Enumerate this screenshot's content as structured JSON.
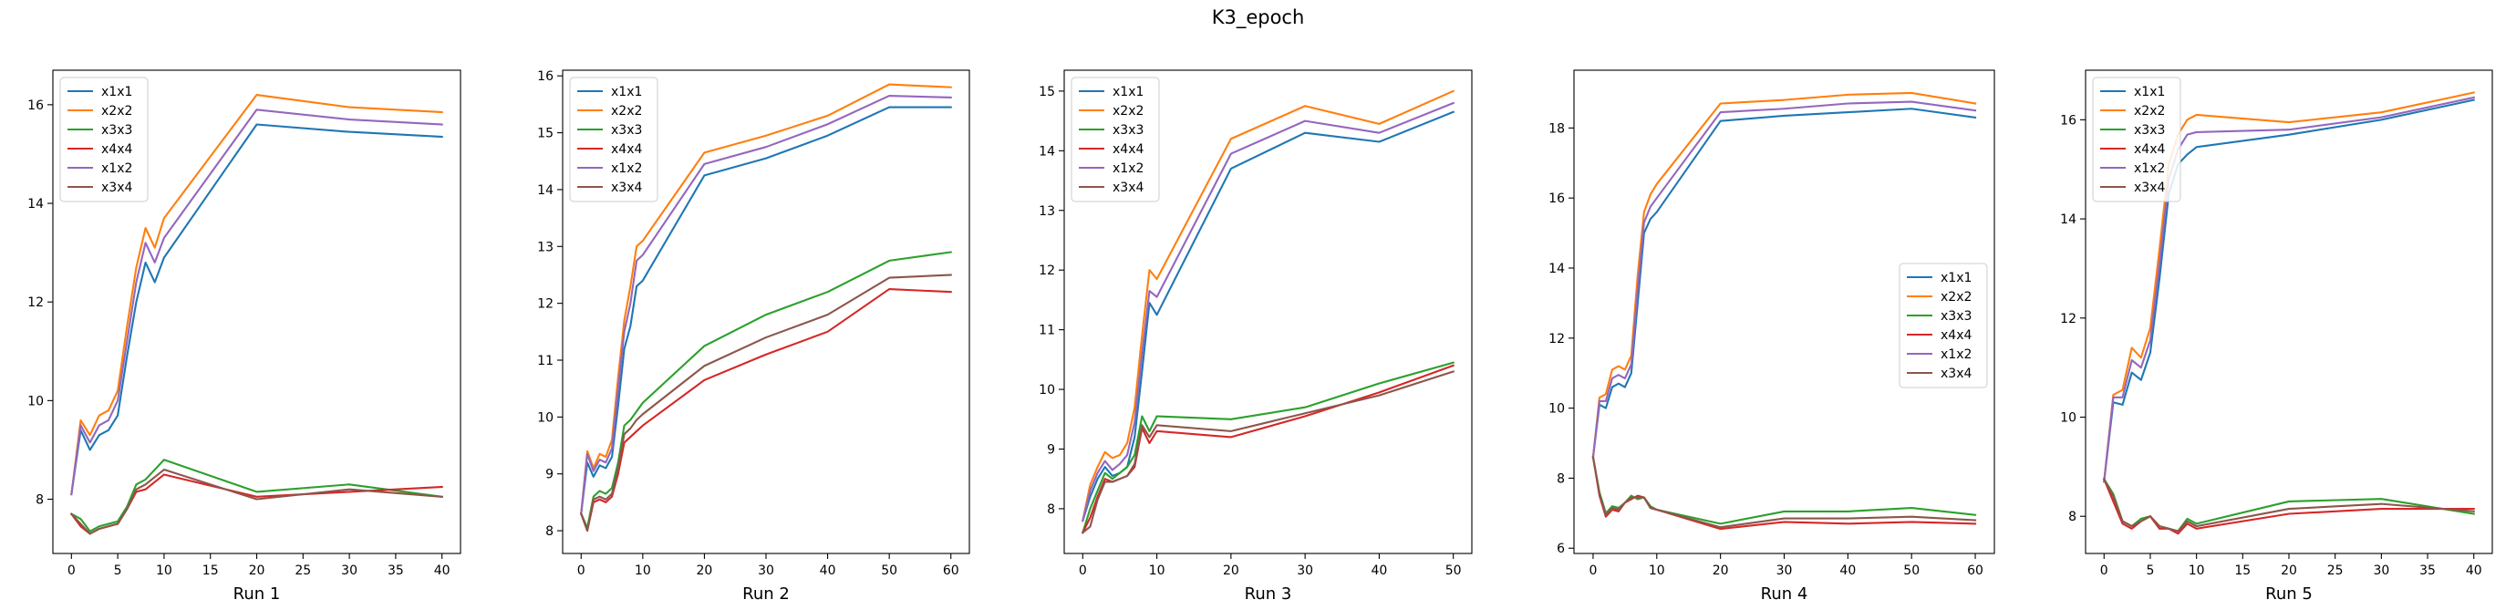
{
  "figure": {
    "title": "K3_epoch"
  },
  "colors": {
    "x1x1": "#1f77b4",
    "x2x2": "#ff7f0e",
    "x3x3": "#2ca02c",
    "x4x4": "#d62728",
    "x1x2": "#9467bd",
    "x3x4": "#8c564b"
  },
  "chart_data": [
    {
      "type": "line",
      "xlabel": "Run 1",
      "xlim": [
        -2,
        42
      ],
      "ylim": [
        6.9,
        16.7
      ],
      "xticks": [
        0,
        5,
        10,
        15,
        20,
        25,
        30,
        35,
        40
      ],
      "yticks": [
        8,
        10,
        12,
        14,
        16
      ],
      "legend_position": "top-left",
      "x": [
        0,
        1,
        2,
        3,
        4,
        5,
        6,
        7,
        8,
        9,
        10,
        20,
        30,
        40
      ],
      "series": [
        {
          "name": "x1x1",
          "values": [
            8.1,
            9.4,
            9.0,
            9.3,
            9.4,
            9.7,
            10.9,
            12.0,
            12.8,
            12.4,
            12.9,
            15.6,
            15.45,
            15.35
          ]
        },
        {
          "name": "x2x2",
          "values": [
            8.1,
            9.6,
            9.3,
            9.7,
            9.8,
            10.2,
            11.5,
            12.7,
            13.5,
            13.1,
            13.7,
            16.2,
            15.95,
            15.85
          ]
        },
        {
          "name": "x3x3",
          "values": [
            7.7,
            7.6,
            7.35,
            7.45,
            7.5,
            7.55,
            7.85,
            8.3,
            8.4,
            8.6,
            8.8,
            8.15,
            8.3,
            8.05
          ]
        },
        {
          "name": "x4x4",
          "values": [
            7.7,
            7.45,
            7.3,
            7.4,
            7.45,
            7.5,
            7.8,
            8.15,
            8.2,
            8.35,
            8.5,
            8.05,
            8.15,
            8.25
          ]
        },
        {
          "name": "x1x2",
          "values": [
            8.1,
            9.5,
            9.15,
            9.5,
            9.6,
            10.0,
            11.2,
            12.4,
            13.2,
            12.8,
            13.3,
            15.9,
            15.7,
            15.6
          ]
        },
        {
          "name": "x3x4",
          "values": [
            7.7,
            7.5,
            7.3,
            7.4,
            7.45,
            7.5,
            7.8,
            8.2,
            8.3,
            8.45,
            8.6,
            8.0,
            8.2,
            8.05
          ]
        }
      ]
    },
    {
      "type": "line",
      "xlabel": "Run 2",
      "xlim": [
        -3,
        63
      ],
      "ylim": [
        7.6,
        16.1
      ],
      "xticks": [
        0,
        10,
        20,
        30,
        40,
        50,
        60
      ],
      "yticks": [
        8,
        9,
        10,
        11,
        12,
        13,
        14,
        15,
        16
      ],
      "legend_position": "top-left",
      "x": [
        0,
        1,
        2,
        3,
        4,
        5,
        6,
        7,
        8,
        9,
        10,
        20,
        30,
        40,
        50,
        60
      ],
      "series": [
        {
          "name": "x1x1",
          "values": [
            8.3,
            9.2,
            8.95,
            9.15,
            9.1,
            9.3,
            10.2,
            11.2,
            11.6,
            12.3,
            12.4,
            14.25,
            14.55,
            14.95,
            15.45,
            15.45
          ]
        },
        {
          "name": "x2x2",
          "values": [
            8.3,
            9.4,
            9.1,
            9.35,
            9.3,
            9.6,
            10.7,
            11.7,
            12.3,
            13.0,
            13.1,
            14.65,
            14.95,
            15.3,
            15.85,
            15.8
          ]
        },
        {
          "name": "x3x3",
          "values": [
            8.3,
            8.05,
            8.6,
            8.7,
            8.65,
            8.75,
            9.2,
            9.85,
            9.95,
            10.1,
            10.25,
            11.25,
            11.8,
            12.2,
            12.75,
            12.9
          ]
        },
        {
          "name": "x4x4",
          "values": [
            8.3,
            8.0,
            8.5,
            8.55,
            8.5,
            8.6,
            9.0,
            9.55,
            9.65,
            9.75,
            9.85,
            10.65,
            11.1,
            11.5,
            12.25,
            12.2
          ]
        },
        {
          "name": "x1x2",
          "values": [
            8.3,
            9.35,
            9.05,
            9.25,
            9.2,
            9.45,
            10.5,
            11.5,
            12.0,
            12.75,
            12.85,
            14.45,
            14.75,
            15.15,
            15.65,
            15.62
          ]
        },
        {
          "name": "x3x4",
          "values": [
            8.3,
            8.0,
            8.55,
            8.6,
            8.55,
            8.65,
            9.1,
            9.7,
            9.8,
            9.95,
            10.05,
            10.9,
            11.4,
            11.8,
            12.45,
            12.5
          ]
        }
      ]
    },
    {
      "type": "line",
      "xlabel": "Run 3",
      "xlim": [
        -2.5,
        52.5
      ],
      "ylim": [
        7.25,
        15.35
      ],
      "xticks": [
        0,
        10,
        20,
        30,
        40,
        50
      ],
      "yticks": [
        8,
        9,
        10,
        11,
        12,
        13,
        14,
        15
      ],
      "legend_position": "top-left",
      "x": [
        0,
        1,
        2,
        3,
        4,
        5,
        6,
        7,
        8,
        9,
        10,
        20,
        30,
        40,
        50
      ],
      "series": [
        {
          "name": "x1x1",
          "values": [
            7.8,
            8.2,
            8.5,
            8.7,
            8.55,
            8.6,
            8.7,
            9.2,
            10.3,
            11.45,
            11.25,
            13.7,
            14.3,
            14.15,
            14.65
          ]
        },
        {
          "name": "x2x2",
          "values": [
            7.8,
            8.4,
            8.7,
            8.95,
            8.85,
            8.9,
            9.1,
            9.7,
            10.9,
            12.0,
            11.85,
            14.2,
            14.75,
            14.45,
            15.0
          ]
        },
        {
          "name": "x3x3",
          "values": [
            7.6,
            8.0,
            8.3,
            8.6,
            8.5,
            8.6,
            8.7,
            8.9,
            9.55,
            9.3,
            9.55,
            9.5,
            9.7,
            10.1,
            10.45
          ]
        },
        {
          "name": "x4x4",
          "values": [
            7.6,
            7.85,
            8.2,
            8.5,
            8.45,
            8.5,
            8.55,
            8.7,
            9.35,
            9.1,
            9.3,
            9.2,
            9.55,
            9.95,
            10.4
          ]
        },
        {
          "name": "x1x2",
          "values": [
            7.8,
            8.3,
            8.6,
            8.8,
            8.65,
            8.75,
            8.9,
            9.45,
            10.6,
            11.65,
            11.55,
            13.95,
            14.5,
            14.3,
            14.8
          ]
        },
        {
          "name": "x3x4",
          "values": [
            7.6,
            7.7,
            8.15,
            8.45,
            8.45,
            8.5,
            8.55,
            8.75,
            9.4,
            9.2,
            9.4,
            9.3,
            9.6,
            9.9,
            10.3
          ]
        }
      ]
    },
    {
      "type": "line",
      "xlabel": "Run 4",
      "xlim": [
        -3,
        63
      ],
      "ylim": [
        5.85,
        19.65
      ],
      "xticks": [
        0,
        10,
        20,
        30,
        40,
        50,
        60
      ],
      "yticks": [
        6,
        8,
        10,
        12,
        14,
        16,
        18
      ],
      "legend_position": "center-right",
      "x": [
        0,
        1,
        2,
        3,
        4,
        5,
        6,
        7,
        8,
        9,
        10,
        20,
        30,
        40,
        50,
        60
      ],
      "series": [
        {
          "name": "x1x1",
          "values": [
            8.6,
            10.1,
            10.0,
            10.6,
            10.7,
            10.6,
            11.0,
            13.0,
            15.0,
            15.4,
            15.6,
            18.2,
            18.35,
            18.45,
            18.55,
            18.3
          ]
        },
        {
          "name": "x2x2",
          "values": [
            8.6,
            10.3,
            10.4,
            11.1,
            11.2,
            11.1,
            11.5,
            13.8,
            15.6,
            16.1,
            16.4,
            18.7,
            18.8,
            18.95,
            19.0,
            18.7
          ]
        },
        {
          "name": "x3x3",
          "values": [
            8.6,
            7.6,
            7.0,
            7.2,
            7.15,
            7.3,
            7.5,
            7.4,
            7.45,
            7.2,
            7.1,
            6.7,
            7.05,
            7.05,
            7.15,
            6.95
          ]
        },
        {
          "name": "x4x4",
          "values": [
            8.6,
            7.5,
            6.9,
            7.1,
            7.05,
            7.3,
            7.4,
            7.5,
            7.45,
            7.15,
            7.1,
            6.55,
            6.75,
            6.7,
            6.75,
            6.7
          ]
        },
        {
          "name": "x1x2",
          "values": [
            8.6,
            10.2,
            10.2,
            10.85,
            10.95,
            10.85,
            11.25,
            13.4,
            15.3,
            15.75,
            16.0,
            18.45,
            18.55,
            18.7,
            18.75,
            18.5
          ]
        },
        {
          "name": "x3x4",
          "values": [
            8.6,
            7.55,
            6.95,
            7.15,
            7.1,
            7.3,
            7.45,
            7.45,
            7.45,
            7.15,
            7.1,
            6.6,
            6.85,
            6.85,
            6.9,
            6.8
          ]
        }
      ]
    },
    {
      "type": "line",
      "xlabel": "Run 5",
      "xlim": [
        -2,
        42
      ],
      "ylim": [
        7.25,
        17.0
      ],
      "xticks": [
        0,
        5,
        10,
        15,
        20,
        25,
        30,
        35,
        40
      ],
      "yticks": [
        8,
        10,
        12,
        14,
        16
      ],
      "legend_position": "top-left",
      "x": [
        0,
        1,
        2,
        3,
        4,
        5,
        6,
        7,
        8,
        9,
        10,
        20,
        30,
        40
      ],
      "series": [
        {
          "name": "x1x1",
          "values": [
            8.7,
            10.3,
            10.25,
            10.9,
            10.75,
            11.3,
            12.8,
            14.5,
            15.1,
            15.3,
            15.45,
            15.7,
            16.0,
            16.4
          ]
        },
        {
          "name": "x2x2",
          "values": [
            8.7,
            10.45,
            10.55,
            11.4,
            11.2,
            11.8,
            13.4,
            15.1,
            15.7,
            16.0,
            16.1,
            15.95,
            16.15,
            16.55
          ]
        },
        {
          "name": "x3x3",
          "values": [
            8.75,
            8.45,
            7.9,
            7.8,
            7.95,
            8.0,
            7.8,
            7.75,
            7.7,
            7.95,
            7.85,
            8.3,
            8.35,
            8.05
          ]
        },
        {
          "name": "x4x4",
          "values": [
            8.75,
            8.3,
            7.85,
            7.75,
            7.9,
            8.0,
            7.75,
            7.75,
            7.65,
            7.85,
            7.75,
            8.05,
            8.15,
            8.15
          ]
        },
        {
          "name": "x1x2",
          "values": [
            8.7,
            10.4,
            10.4,
            11.15,
            11.0,
            11.55,
            13.1,
            14.8,
            15.4,
            15.7,
            15.75,
            15.8,
            16.05,
            16.45
          ]
        },
        {
          "name": "x3x4",
          "values": [
            8.75,
            8.4,
            7.9,
            7.8,
            7.9,
            8.0,
            7.8,
            7.75,
            7.7,
            7.9,
            7.8,
            8.15,
            8.25,
            8.1
          ]
        }
      ]
    }
  ]
}
